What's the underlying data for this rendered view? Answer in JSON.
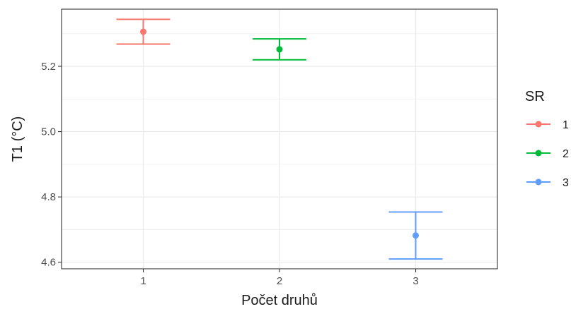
{
  "chart_data": {
    "type": "errorbar",
    "categories": [
      "1",
      "2",
      "3"
    ],
    "series": [
      {
        "name": "1",
        "color": "#F8766D",
        "x": "1",
        "value": 5.306,
        "lower": 5.268,
        "upper": 5.344
      },
      {
        "name": "2",
        "color": "#00BA38",
        "x": "2",
        "value": 5.252,
        "lower": 5.22,
        "upper": 5.284
      },
      {
        "name": "3",
        "color": "#619CFF",
        "x": "3",
        "value": 4.682,
        "lower": 4.61,
        "upper": 4.754
      }
    ],
    "xlabel": "Počet druhů",
    "ylabel": "T1 (°C)",
    "ylim": [
      4.58,
      5.375
    ],
    "yticks": [
      4.6,
      4.8,
      5.0,
      5.2
    ],
    "ytick_labels": [
      "4.6",
      "4.8",
      "5.0",
      "5.2"
    ],
    "grid": true,
    "legend": {
      "title": "SR",
      "position": "right"
    }
  }
}
